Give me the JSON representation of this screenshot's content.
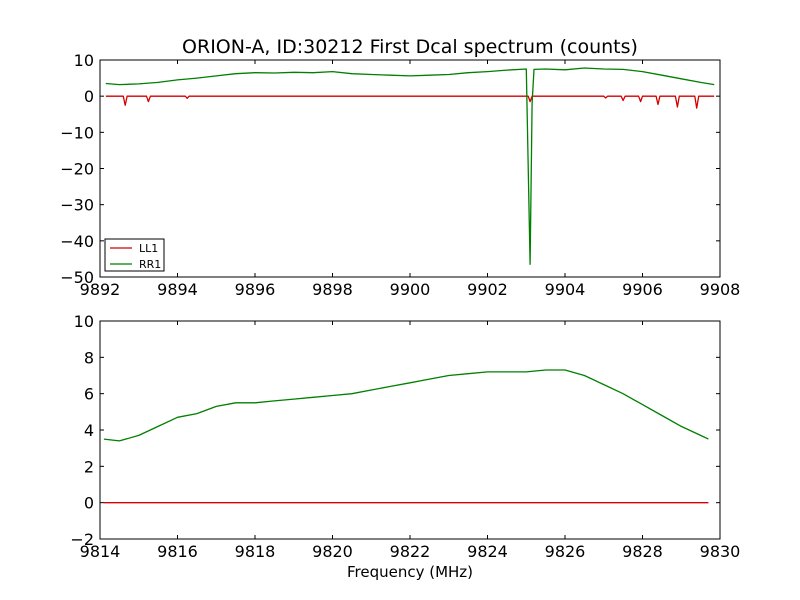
{
  "chart_data": [
    {
      "type": "line",
      "title": "ORION-A, ID:30212 First Dcal spectrum (counts)",
      "xlabel": "",
      "ylabel": "",
      "xlim": [
        9892,
        9908
      ],
      "ylim": [
        -50,
        10
      ],
      "xticks": [
        "9892",
        "9894",
        "9896",
        "9898",
        "9900",
        "9902",
        "9904",
        "9906",
        "9908"
      ],
      "yticks": [
        "10",
        "0",
        "−10",
        "−20",
        "−30",
        "−40",
        "−50"
      ],
      "grid": false,
      "legend": {
        "placement": "lower-left",
        "entries": [
          "LL1",
          "RR1"
        ]
      },
      "series": [
        {
          "name": "LL1",
          "color": "#d40000",
          "x": [
            9892.15,
            9892.6,
            9892.65,
            9892.7,
            9893.2,
            9893.25,
            9893.3,
            9894.2,
            9894.25,
            9894.3,
            9898,
            9902,
            9903.05,
            9903.1,
            9903.15,
            9905.0,
            9905.05,
            9905.1,
            9905.45,
            9905.5,
            9905.55,
            9905.9,
            9905.95,
            9906.0,
            9906.35,
            9906.4,
            9906.45,
            9906.85,
            9906.9,
            9906.95,
            9907.35,
            9907.4,
            9907.45,
            9907.85
          ],
          "y": [
            0,
            0,
            -2.5,
            0,
            0,
            -1.5,
            0,
            0,
            -0.6,
            0,
            0,
            0,
            0,
            -1.5,
            0,
            0,
            -0.5,
            0,
            0,
            -1.2,
            0,
            0,
            -1.5,
            0,
            0,
            -2.3,
            0,
            0,
            -3,
            0,
            0,
            -3.3,
            0,
            0
          ]
        },
        {
          "name": "RR1",
          "color": "#007f00",
          "x": [
            9892.15,
            9892.5,
            9893.0,
            9893.5,
            9894.0,
            9894.5,
            9895.0,
            9895.5,
            9896.0,
            9896.5,
            9897.0,
            9897.5,
            9898.0,
            9898.5,
            9899.0,
            9899.5,
            9900.0,
            9900.5,
            9901.0,
            9901.5,
            9902.0,
            9902.5,
            9903.0,
            9903.1,
            9903.15,
            9903.2,
            9903.5,
            9904.0,
            9904.5,
            9905.0,
            9905.5,
            9906.0,
            9906.5,
            9907.0,
            9907.5,
            9907.85
          ],
          "y": [
            3.5,
            3.2,
            3.4,
            3.8,
            4.5,
            5.0,
            5.6,
            6.2,
            6.5,
            6.4,
            6.6,
            6.5,
            6.8,
            6.2,
            6.0,
            5.8,
            5.6,
            5.8,
            6.0,
            6.5,
            6.8,
            7.2,
            7.5,
            -46.5,
            -2.0,
            7.4,
            7.5,
            7.3,
            7.8,
            7.5,
            7.4,
            6.8,
            5.8,
            4.8,
            3.8,
            3.2
          ]
        }
      ]
    },
    {
      "type": "line",
      "title": "",
      "xlabel": "Frequency (MHz)",
      "ylabel": "",
      "xlim": [
        9814,
        9830
      ],
      "ylim": [
        -2,
        10
      ],
      "xticks": [
        "9814",
        "9816",
        "9818",
        "9820",
        "9822",
        "9824",
        "9826",
        "9828",
        "9830"
      ],
      "yticks": [
        "10",
        "8",
        "6",
        "4",
        "2",
        "0",
        "−2"
      ],
      "grid": false,
      "legend": null,
      "series": [
        {
          "color": "#d40000",
          "x": [
            9814.1,
            9815,
            9816,
            9817,
            9818,
            9819,
            9820,
            9821,
            9822,
            9823,
            9824,
            9825,
            9826,
            9827,
            9828,
            9829,
            9829.7
          ],
          "y": [
            0,
            0,
            0,
            0,
            0,
            0,
            0,
            0,
            0,
            0,
            0,
            0,
            0,
            0,
            0,
            0,
            0
          ]
        },
        {
          "color": "#007f00",
          "x": [
            9814.1,
            9814.5,
            9815.0,
            9815.5,
            9816.0,
            9816.5,
            9817.0,
            9817.5,
            9818.0,
            9818.5,
            9819.0,
            9819.5,
            9820.0,
            9820.5,
            9821.0,
            9821.5,
            9822.0,
            9822.5,
            9823.0,
            9823.5,
            9824.0,
            9824.5,
            9825.0,
            9825.5,
            9826.0,
            9826.5,
            9827.0,
            9827.5,
            9828.0,
            9828.5,
            9829.0,
            9829.5,
            9829.7
          ],
          "y": [
            3.5,
            3.4,
            3.7,
            4.2,
            4.7,
            4.9,
            5.3,
            5.5,
            5.5,
            5.6,
            5.7,
            5.8,
            5.9,
            6.0,
            6.2,
            6.4,
            6.6,
            6.8,
            7.0,
            7.1,
            7.2,
            7.2,
            7.2,
            7.3,
            7.3,
            7.0,
            6.5,
            6.0,
            5.4,
            4.8,
            4.2,
            3.7,
            3.5
          ]
        }
      ]
    }
  ]
}
